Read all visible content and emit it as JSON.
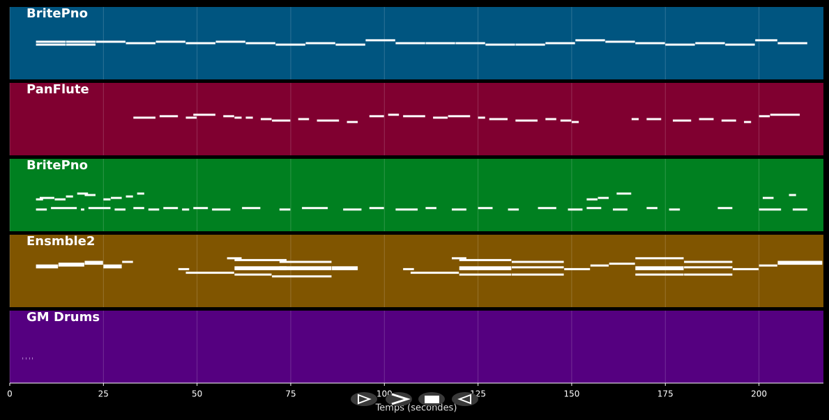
{
  "chart_data": {
    "type": "pianoroll",
    "xlabel": "Temps (secondes)",
    "xlim": [
      0,
      217.2
    ],
    "xticks": [
      0,
      25,
      50,
      75,
      100,
      125,
      150,
      175,
      200
    ],
    "grid": true,
    "tracks": [
      {
        "name": "BritePno",
        "color": "#005580",
        "note_color": "#ffffff",
        "ylim": [
          40,
          90
        ],
        "starts": [
          7,
          7,
          15,
          15,
          23,
          31,
          39,
          47,
          55,
          63,
          71,
          79,
          87,
          95,
          103,
          111,
          119,
          127,
          135,
          143,
          151,
          159,
          167,
          175,
          183,
          191,
          199,
          205
        ],
        "ends": [
          15,
          15,
          23,
          23,
          31,
          39,
          47,
          55,
          63,
          71,
          79,
          87,
          95,
          103,
          111,
          119,
          127,
          135,
          143,
          151,
          159,
          167,
          175,
          183,
          191,
          199,
          205,
          213
        ],
        "pitches": [
          66,
          64,
          66,
          64,
          66,
          65,
          66,
          65,
          66,
          65,
          64,
          65,
          64,
          67,
          65,
          65,
          65,
          64,
          64,
          65,
          67,
          66,
          65,
          64,
          65,
          64,
          67,
          65
        ]
      },
      {
        "name": "PanFlute",
        "color": "#800030",
        "note_color": "#ffffff",
        "ylim": [
          40,
          90
        ],
        "starts": [
          33,
          40,
          47,
          49,
          57,
          60,
          63,
          67,
          70,
          77,
          82,
          90,
          96,
          101,
          105,
          113,
          117,
          125,
          128,
          135,
          143,
          147,
          150,
          166,
          170,
          177,
          184,
          190,
          196,
          200,
          203
        ],
        "ends": [
          39,
          45,
          50,
          55,
          60,
          62,
          65,
          70,
          75,
          80,
          88,
          93,
          100,
          104,
          111,
          117,
          123,
          127,
          133,
          141,
          146,
          150,
          152,
          168,
          174,
          182,
          188,
          194,
          198,
          203,
          211
        ],
        "pitches": [
          66,
          67,
          66,
          68,
          67,
          66,
          66,
          65,
          64,
          65,
          64,
          63,
          67,
          68,
          67,
          66,
          67,
          66,
          65,
          64,
          65,
          64,
          63,
          65,
          65,
          64,
          65,
          64,
          63,
          67,
          68
        ]
      },
      {
        "name": "BritePno",
        "color": "#008020",
        "note_color": "#ffffff",
        "ylim": [
          40,
          90
        ],
        "starts": [
          7,
          11,
          19,
          21,
          28,
          33,
          37,
          41,
          46,
          49,
          54,
          62,
          72,
          78,
          89,
          96,
          103,
          111,
          118,
          125,
          133,
          141,
          149,
          154,
          161,
          170,
          176,
          189,
          200,
          209,
          7,
          8,
          12,
          15,
          18,
          20,
          25,
          27,
          31,
          34,
          154,
          157,
          162,
          201,
          208
        ],
        "ends": [
          10,
          18,
          20,
          27,
          31,
          36,
          40,
          45,
          48,
          53,
          59,
          67,
          75,
          85,
          94,
          100,
          109,
          114,
          122,
          129,
          136,
          146,
          153,
          158,
          165,
          173,
          179,
          193,
          206,
          213,
          9,
          12,
          15,
          17,
          21,
          23,
          27,
          30,
          33,
          36,
          157,
          160,
          166,
          204,
          210
        ],
        "pitches": [
          55,
          56,
          55,
          56,
          55,
          56,
          55,
          56,
          55,
          56,
          55,
          56,
          55,
          56,
          55,
          56,
          55,
          56,
          55,
          56,
          55,
          56,
          55,
          56,
          55,
          56,
          55,
          56,
          55,
          55,
          62,
          63,
          62,
          64,
          66,
          65,
          62,
          63,
          64,
          66,
          62,
          63,
          66,
          63,
          65
        ]
      },
      {
        "name": "Ensmble2",
        "color": "#805500",
        "note_color": "#ffffff",
        "ylim": [
          40,
          80
        ],
        "starts": [
          7,
          7,
          13,
          13,
          20,
          20,
          25,
          25,
          30,
          45,
          47,
          58,
          60,
          60,
          60,
          60,
          72,
          72,
          72,
          70,
          86,
          86,
          105,
          107,
          118,
          120,
          120,
          120,
          120,
          134,
          134,
          134,
          148,
          155,
          160,
          167,
          167,
          167,
          167,
          180,
          180,
          180,
          193,
          200,
          205,
          205
        ],
        "ends": [
          13,
          13,
          20,
          20,
          25,
          25,
          30,
          30,
          33,
          48,
          60,
          62,
          74,
          74,
          74,
          70,
          86,
          86,
          86,
          86,
          93,
          93,
          108,
          120,
          122,
          134,
          134,
          134,
          134,
          148,
          148,
          148,
          155,
          160,
          167,
          180,
          180,
          180,
          180,
          193,
          193,
          193,
          200,
          205,
          217,
          217
        ],
        "pitches": [
          63,
          62,
          64,
          63,
          65,
          64,
          63,
          62,
          65,
          61,
          59,
          67,
          66,
          62,
          61,
          58,
          65,
          62,
          61,
          57,
          61,
          62,
          61,
          59,
          67,
          66,
          62,
          61,
          58,
          65,
          62,
          58,
          61,
          63,
          64,
          67,
          62,
          61,
          58,
          65,
          62,
          58,
          61,
          63,
          65,
          64
        ]
      },
      {
        "name": "GM Drums",
        "color": "#550080",
        "note_color": "#c9a0e0",
        "ylim": [
          30,
          80
        ],
        "starts": [
          3.4,
          4.3,
          5.2,
          6.0
        ],
        "ends": [
          3.6,
          4.5,
          5.4,
          6.2
        ],
        "pitches": [
          47,
          47,
          47,
          47
        ]
      }
    ]
  }
}
